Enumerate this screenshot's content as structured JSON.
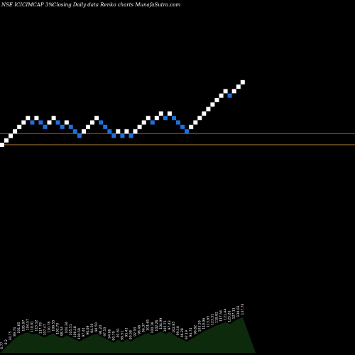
{
  "header": {
    "title": "NSE ICICIMCAP 3%",
    "subtitle": "Closing Daily data  Renko  charts MunafaSutra.com"
  },
  "colors": {
    "background": "#000000",
    "up_brick": "#ffffff",
    "down_brick": "#1e6fe0",
    "hline": "#a0702a",
    "volume": "#0d2a0d"
  },
  "chart_data": {
    "type": "renko",
    "box_size_pct": 3,
    "bricks": [
      {
        "level": 0,
        "dir": "up"
      },
      {
        "level": 1,
        "dir": "up"
      },
      {
        "level": 2,
        "dir": "up"
      },
      {
        "level": 3,
        "dir": "up"
      },
      {
        "level": 4,
        "dir": "up"
      },
      {
        "level": 5,
        "dir": "up"
      },
      {
        "level": 6,
        "dir": "up"
      },
      {
        "level": 5,
        "dir": "down"
      },
      {
        "level": 6,
        "dir": "up"
      },
      {
        "level": 5,
        "dir": "down"
      },
      {
        "level": 4,
        "dir": "down"
      },
      {
        "level": 5,
        "dir": "up"
      },
      {
        "level": 6,
        "dir": "up"
      },
      {
        "level": 5,
        "dir": "down"
      },
      {
        "level": 4,
        "dir": "down"
      },
      {
        "level": 5,
        "dir": "up"
      },
      {
        "level": 4,
        "dir": "down"
      },
      {
        "level": 3,
        "dir": "down"
      },
      {
        "level": 2,
        "dir": "down"
      },
      {
        "level": 3,
        "dir": "up"
      },
      {
        "level": 4,
        "dir": "up"
      },
      {
        "level": 5,
        "dir": "up"
      },
      {
        "level": 6,
        "dir": "up"
      },
      {
        "level": 5,
        "dir": "down"
      },
      {
        "level": 4,
        "dir": "down"
      },
      {
        "level": 3,
        "dir": "down"
      },
      {
        "level": 2,
        "dir": "down"
      },
      {
        "level": 3,
        "dir": "up"
      },
      {
        "level": 2,
        "dir": "down"
      },
      {
        "level": 3,
        "dir": "up"
      },
      {
        "level": 2,
        "dir": "down"
      },
      {
        "level": 3,
        "dir": "up"
      },
      {
        "level": 4,
        "dir": "up"
      },
      {
        "level": 5,
        "dir": "up"
      },
      {
        "level": 6,
        "dir": "up"
      },
      {
        "level": 5,
        "dir": "down"
      },
      {
        "level": 6,
        "dir": "up"
      },
      {
        "level": 7,
        "dir": "up"
      },
      {
        "level": 6,
        "dir": "down"
      },
      {
        "level": 7,
        "dir": "up"
      },
      {
        "level": 6,
        "dir": "down"
      },
      {
        "level": 5,
        "dir": "down"
      },
      {
        "level": 4,
        "dir": "down"
      },
      {
        "level": 3,
        "dir": "down"
      },
      {
        "level": 4,
        "dir": "up"
      },
      {
        "level": 5,
        "dir": "up"
      },
      {
        "level": 6,
        "dir": "up"
      },
      {
        "level": 7,
        "dir": "up"
      },
      {
        "level": 8,
        "dir": "up"
      },
      {
        "level": 9,
        "dir": "up"
      },
      {
        "level": 10,
        "dir": "up"
      },
      {
        "level": 11,
        "dir": "up"
      },
      {
        "level": 12,
        "dir": "up"
      },
      {
        "level": 11,
        "dir": "down"
      },
      {
        "level": 12,
        "dir": "up"
      },
      {
        "level": 13,
        "dir": "up"
      },
      {
        "level": 14,
        "dir": "up"
      }
    ],
    "hlines": [
      3.0,
      0.5
    ],
    "volume_labels": [
      "6.77",
      "9.2",
      "30.75",
      "89.74",
      "101.85",
      "105.97",
      "104.57",
      "110.01",
      "115.12",
      "117.78",
      "107.47",
      "110.78",
      "106.55",
      "102.70",
      "98.54",
      "104.34",
      "105.51",
      "106.18",
      "100.58",
      "97.44",
      "90.69",
      "84.56",
      "90.50",
      "94.20",
      "97.53",
      "94.66",
      "90.79",
      "92.61",
      "99.51",
      "95.43",
      "90.58",
      "92.93",
      "98.46",
      "96.37",
      "101.65",
      "100.16",
      "102.26",
      "104.99",
      "105.71",
      "97.43",
      "102.85",
      "99.16",
      "96.28",
      "92.19",
      "94.74",
      "96.82",
      "105.50",
      "110.96",
      "113.65",
      "123.31",
      "119.82",
      "117.54",
      "121.44",
      "125.26",
      "127.11",
      "130.03",
      "137.76"
    ],
    "volume_values": [
      0.3,
      1.2,
      2.0,
      2.8,
      3.4,
      3.8,
      4.0,
      3.6,
      3.8,
      3.3,
      3.0,
      3.5,
      3.8,
      3.2,
      2.9,
      3.4,
      3.0,
      2.6,
      2.2,
      2.7,
      3.1,
      3.5,
      3.7,
      3.2,
      2.8,
      2.4,
      2.0,
      2.6,
      2.1,
      2.7,
      2.2,
      2.8,
      3.2,
      3.6,
      3.9,
      3.4,
      3.8,
      4.2,
      3.7,
      4.1,
      3.5,
      3.0,
      2.6,
      2.2,
      2.7,
      3.2,
      3.7,
      4.2,
      4.6,
      5.0,
      5.4,
      5.7,
      6.0,
      5.6,
      6.2,
      6.6,
      7.0
    ]
  }
}
